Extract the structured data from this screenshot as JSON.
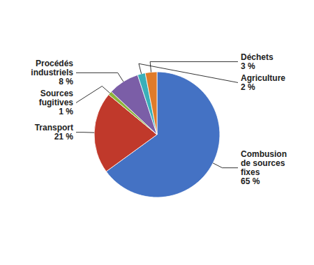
{
  "chart_data": {
    "type": "pie",
    "categories": [
      "Combusion\nde sources\nfixes",
      "Transport",
      "Sources\nfugitives",
      "Procédés\nindustriels",
      "Agriculture",
      "Déchets"
    ],
    "values": [
      65,
      21,
      1,
      8,
      2,
      3
    ],
    "value_labels": [
      "65 %",
      "21 %",
      "1 %",
      "8 %",
      "2 %",
      "3 %"
    ],
    "colors": [
      "#4472C4",
      "#C0392B",
      "#8DB53C",
      "#7B5EA7",
      "#3AAFB9",
      "#E07B2A"
    ]
  }
}
